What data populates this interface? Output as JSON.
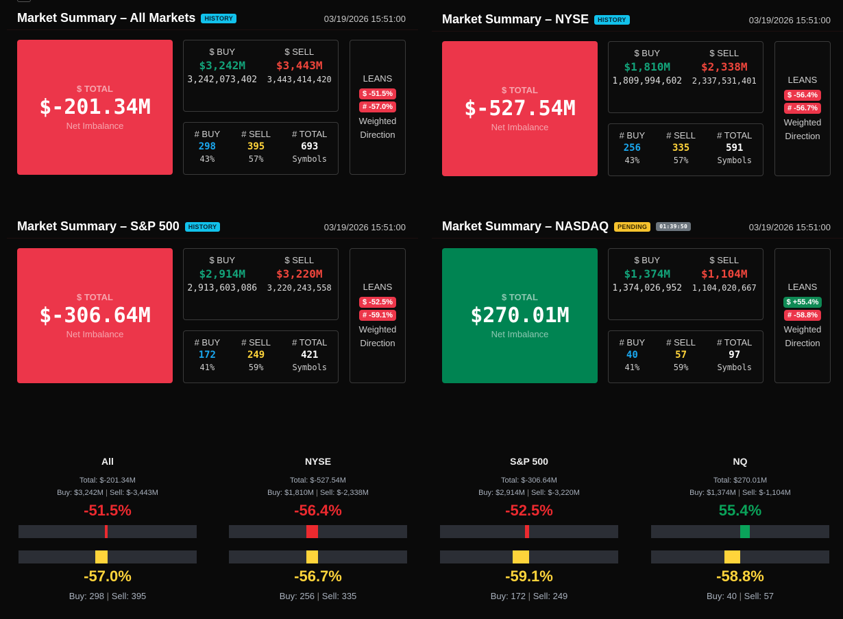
{
  "summaries": [
    {
      "title": "Market Summary – All Markets",
      "badge": "HISTORY",
      "badge_type": "history",
      "timer": null,
      "date": "03/19/2026 15:51:00",
      "total_label": "$ TOTAL",
      "total": "$-201.34M",
      "total_sub": "Net Imbalance",
      "sign": "neg",
      "buy_label": "$ BUY",
      "sell_label": "$ SELL",
      "buy": "$3,242M",
      "sell": "$3,443M",
      "buy_raw": "3,242,073,402",
      "sell_raw": "3,443,414,420",
      "nbuy_label": "# BUY",
      "nsell_label": "# SELL",
      "ntotal_label": "# TOTAL",
      "nbuy": "298",
      "nsell": "395",
      "ntotal": "693",
      "nbuy_pct": "43%",
      "nsell_pct": "57%",
      "symbols": "Symbols",
      "leans": "LEANS",
      "lean_dollar": "$ -51.5%",
      "lean_dollar_sign": "neg",
      "lean_count": "# -57.0%",
      "weighted": "Weighted",
      "direction": "Direction"
    },
    {
      "title": "Market Summary – NYSE",
      "badge": "HISTORY",
      "badge_type": "history",
      "timer": null,
      "date": "03/19/2026 15:51:00",
      "total_label": "$ TOTAL",
      "total": "$-527.54M",
      "total_sub": "Net Imbalance",
      "sign": "neg",
      "buy_label": "$ BUY",
      "sell_label": "$ SELL",
      "buy": "$1,810M",
      "sell": "$2,338M",
      "buy_raw": "1,809,994,602",
      "sell_raw": "2,337,531,401",
      "nbuy_label": "# BUY",
      "nsell_label": "# SELL",
      "ntotal_label": "# TOTAL",
      "nbuy": "256",
      "nsell": "335",
      "ntotal": "591",
      "nbuy_pct": "43%",
      "nsell_pct": "57%",
      "symbols": "Symbols",
      "leans": "LEANS",
      "lean_dollar": "$ -56.4%",
      "lean_dollar_sign": "neg",
      "lean_count": "# -56.7%",
      "weighted": "Weighted",
      "direction": "Direction"
    },
    {
      "title": "Market Summary – S&P 500",
      "badge": "HISTORY",
      "badge_type": "history",
      "timer": null,
      "date": "03/19/2026 15:51:00",
      "total_label": "$ TOTAL",
      "total": "$-306.64M",
      "total_sub": "Net Imbalance",
      "sign": "neg",
      "buy_label": "$ BUY",
      "sell_label": "$ SELL",
      "buy": "$2,914M",
      "sell": "$3,220M",
      "buy_raw": "2,913,603,086",
      "sell_raw": "3,220,243,558",
      "nbuy_label": "# BUY",
      "nsell_label": "# SELL",
      "ntotal_label": "# TOTAL",
      "nbuy": "172",
      "nsell": "249",
      "ntotal": "421",
      "nbuy_pct": "41%",
      "nsell_pct": "59%",
      "symbols": "Symbols",
      "leans": "LEANS",
      "lean_dollar": "$ -52.5%",
      "lean_dollar_sign": "neg",
      "lean_count": "# -59.1%",
      "weighted": "Weighted",
      "direction": "Direction"
    },
    {
      "title": "Market Summary – NASDAQ",
      "badge": "PENDING",
      "badge_type": "pending",
      "timer": "01:39:50",
      "date": "03/19/2026 15:51:00",
      "total_label": "$ TOTAL",
      "total": "$270.01M",
      "total_sub": "Net Imbalance",
      "sign": "pos",
      "buy_label": "$ BUY",
      "sell_label": "$ SELL",
      "buy": "$1,374M",
      "sell": "$1,104M",
      "buy_raw": "1,374,026,952",
      "sell_raw": "1,104,020,667",
      "nbuy_label": "# BUY",
      "nsell_label": "# SELL",
      "ntotal_label": "# TOTAL",
      "nbuy": "40",
      "nsell": "57",
      "ntotal": "97",
      "nbuy_pct": "41%",
      "nsell_pct": "59%",
      "symbols": "Symbols",
      "leans": "LEANS",
      "lean_dollar": "$ +55.4%",
      "lean_dollar_sign": "pos",
      "lean_count": "# -58.8%",
      "weighted": "Weighted",
      "direction": "Direction"
    }
  ],
  "gauges": [
    {
      "name": "All",
      "total": "Total: $-201.34M",
      "buy": "Buy: $3,242M",
      "sell": "Sell: $-3,443M",
      "dollar_pct": "-51.5%",
      "dollar_value": -51.5,
      "count_pct": "-57.0%",
      "count_value": -57.0,
      "count_buy": "Buy: 298",
      "count_sell": "Sell: 395"
    },
    {
      "name": "NYSE",
      "total": "Total: $-527.54M",
      "buy": "Buy: $1,810M",
      "sell": "Sell: $-2,338M",
      "dollar_pct": "-56.4%",
      "dollar_value": -56.4,
      "count_pct": "-56.7%",
      "count_value": -56.7,
      "count_buy": "Buy: 256",
      "count_sell": "Sell: 335"
    },
    {
      "name": "S&P 500",
      "total": "Total: $-306.64M",
      "buy": "Buy: $2,914M",
      "sell": "Sell: $-3,220M",
      "dollar_pct": "-52.5%",
      "dollar_value": -52.5,
      "count_pct": "-59.1%",
      "count_value": -59.1,
      "count_buy": "Buy: 172",
      "count_sell": "Sell: 249"
    },
    {
      "name": "NQ",
      "total": "Total: $270.01M",
      "buy": "Buy: $1,374M",
      "sell": "Sell: $-1,104M",
      "dollar_pct": "55.4%",
      "dollar_value": 55.4,
      "count_pct": "-58.8%",
      "count_value": -58.8,
      "count_buy": "Buy: 40",
      "count_sell": "Sell: 57"
    }
  ],
  "colors": {
    "negative": "#ec364a",
    "positive": "#008452",
    "bar_red": "#ec2a2f",
    "bar_green": "#0aa35a",
    "bar_yellow": "#ffd43b",
    "history": "#12c2ec",
    "pending": "#f7c32e"
  }
}
